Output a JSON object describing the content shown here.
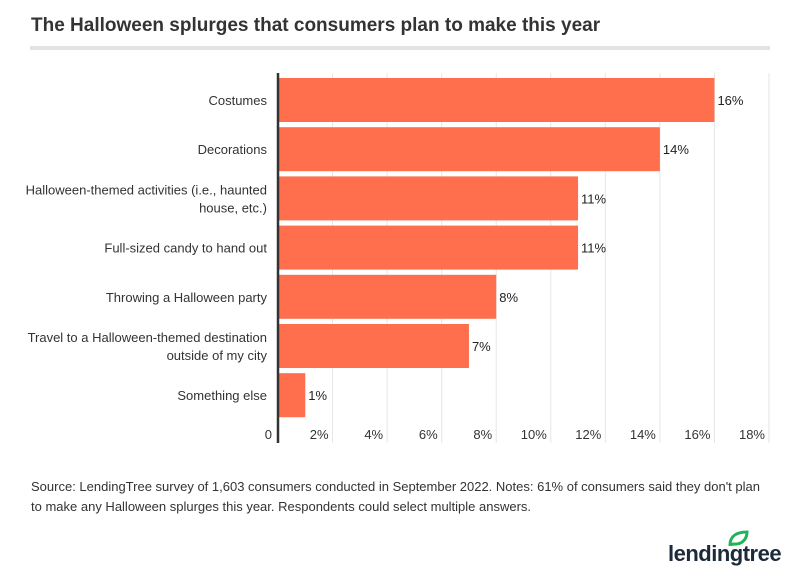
{
  "title": "The Halloween splurges that consumers plan to make this year",
  "source": "Source: LendingTree survey of 1,603 consumers conducted in September 2022. Notes: 61% of consumers said they don't plan to make any Halloween splurges this year. Respondents could select multiple answers.",
  "logo": "lendingtree",
  "colors": {
    "bar": "#ff6f4e",
    "axis": "#333333",
    "grid": "#e6e6e6",
    "logo_leaf": "#1fb35a"
  },
  "chart_data": {
    "type": "bar",
    "orientation": "horizontal",
    "categories": [
      [
        "Costumes"
      ],
      [
        "Decorations"
      ],
      [
        "Halloween-themed activities (i.e., haunted",
        "house, etc.)"
      ],
      [
        "Full-sized candy to hand out"
      ],
      [
        "Throwing a Halloween party"
      ],
      [
        "Travel to a Halloween-themed destination",
        "outside of my city"
      ],
      [
        "Something else"
      ]
    ],
    "values": [
      16,
      14,
      11,
      11,
      8,
      7,
      1
    ],
    "data_labels": [
      "16%",
      "14%",
      "11%",
      "11%",
      "8%",
      "7%",
      "1%"
    ],
    "xlim": [
      0,
      18
    ],
    "xticks": [
      0,
      2,
      4,
      6,
      8,
      10,
      12,
      14,
      16,
      18
    ],
    "xtick_labels": [
      "0",
      "2%",
      "4%",
      "6%",
      "8%",
      "10%",
      "12%",
      "14%",
      "16%",
      "18%"
    ],
    "grid": true
  }
}
